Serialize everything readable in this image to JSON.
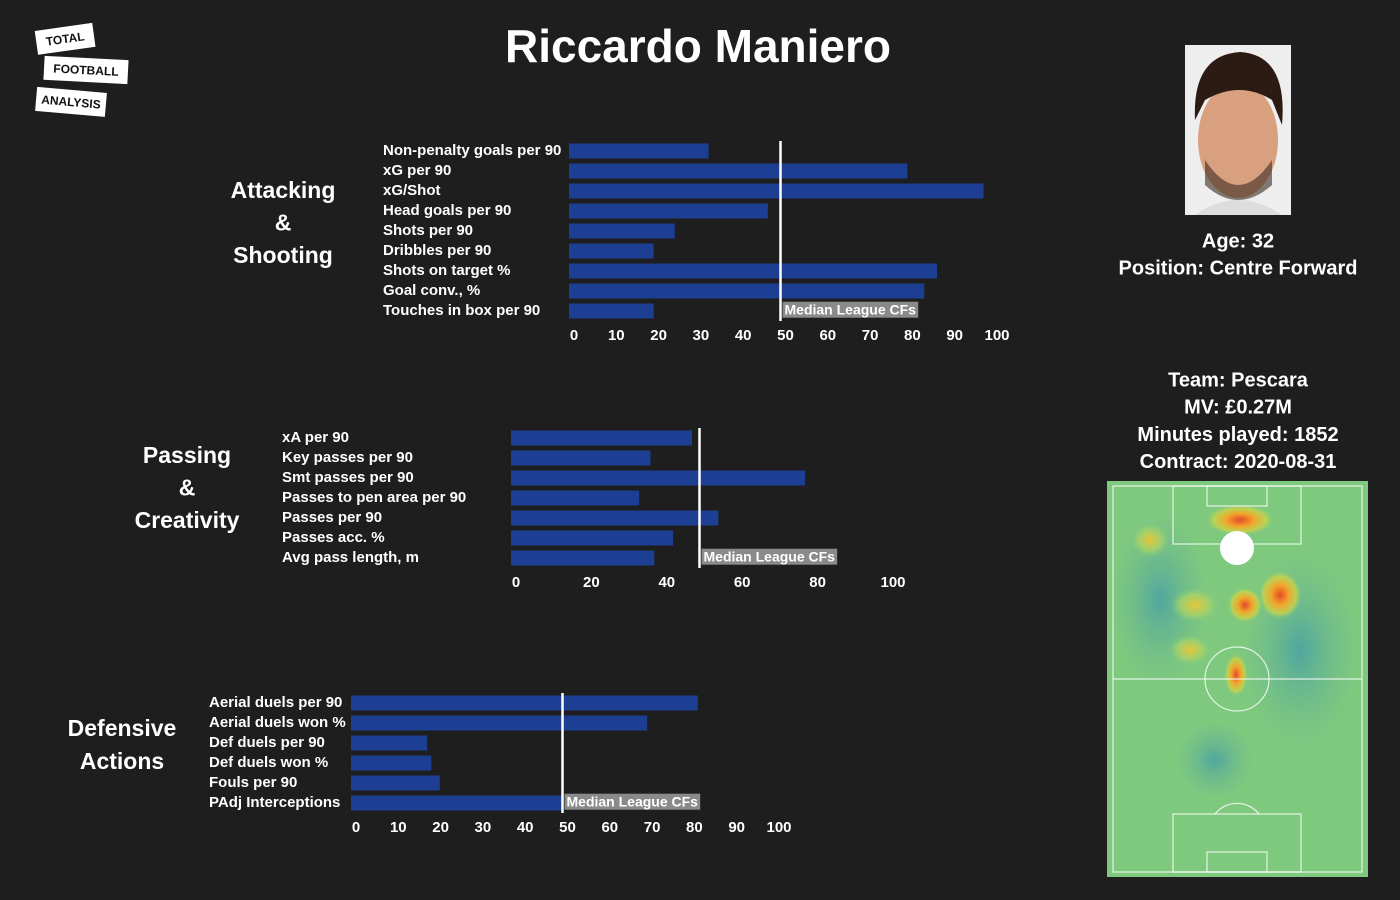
{
  "title": "Riccardo Maniero",
  "logo": [
    "TOTAL",
    "FOOTBALL",
    "ANALYSIS"
  ],
  "player": {
    "profile": [
      "Age: 32",
      "Position: Centre Forward"
    ],
    "club": [
      "Team: Pescara",
      "MV: £0.27M",
      "Minutes played: 1852",
      "Contract: 2020-08-31"
    ]
  },
  "chart_data": [
    {
      "type": "bar",
      "orientation": "horizontal",
      "title_lines": [
        "Attacking",
        "&",
        "Shooting"
      ],
      "categories": [
        "Non-penalty goals per 90",
        "xG per 90",
        "xG/Shot",
        "Head goals per 90",
        "Shots per 90",
        "Dribbles per 90",
        "Shots on target %",
        "Goal conv., %",
        "Touches in box per 90"
      ],
      "values": [
        33,
        80,
        98,
        47,
        25,
        20,
        87,
        84,
        20
      ],
      "color": "#1c3f94",
      "xlim": [
        0,
        100
      ],
      "xticks": [
        0,
        10,
        20,
        30,
        40,
        50,
        60,
        70,
        80,
        90,
        100
      ],
      "median": 50,
      "median_label": "Median League CFs"
    },
    {
      "type": "bar",
      "orientation": "horizontal",
      "title_lines": [
        "Passing",
        "&",
        "Creativity"
      ],
      "categories": [
        "xA per 90",
        "Key passes per 90",
        "Smt passes per 90",
        "Passes to pen area per 90",
        "Passes per 90",
        "Passes acc. %",
        "Avg pass length, m"
      ],
      "values": [
        48,
        37,
        78,
        34,
        55,
        43,
        38
      ],
      "color": "#1c3f94",
      "xlim": [
        0,
        100
      ],
      "xticks": [
        0,
        20,
        40,
        60,
        80,
        100
      ],
      "median": 50,
      "median_label": "Median League CFs"
    },
    {
      "type": "bar",
      "orientation": "horizontal",
      "title_lines": [
        "Defensive",
        "Actions"
      ],
      "categories": [
        "Aerial duels per 90",
        "Aerial duels won %",
        "Def duels per 90",
        "Def duels won %",
        "Fouls per 90",
        "PAdj Interceptions"
      ],
      "values": [
        82,
        70,
        18,
        19,
        21,
        50
      ],
      "color": "#1c3f94",
      "xlim": [
        0,
        100
      ],
      "xticks": [
        0,
        10,
        20,
        30,
        40,
        50,
        60,
        70,
        80,
        90,
        100
      ],
      "median": 50,
      "median_label": "Median League CFs"
    }
  ]
}
